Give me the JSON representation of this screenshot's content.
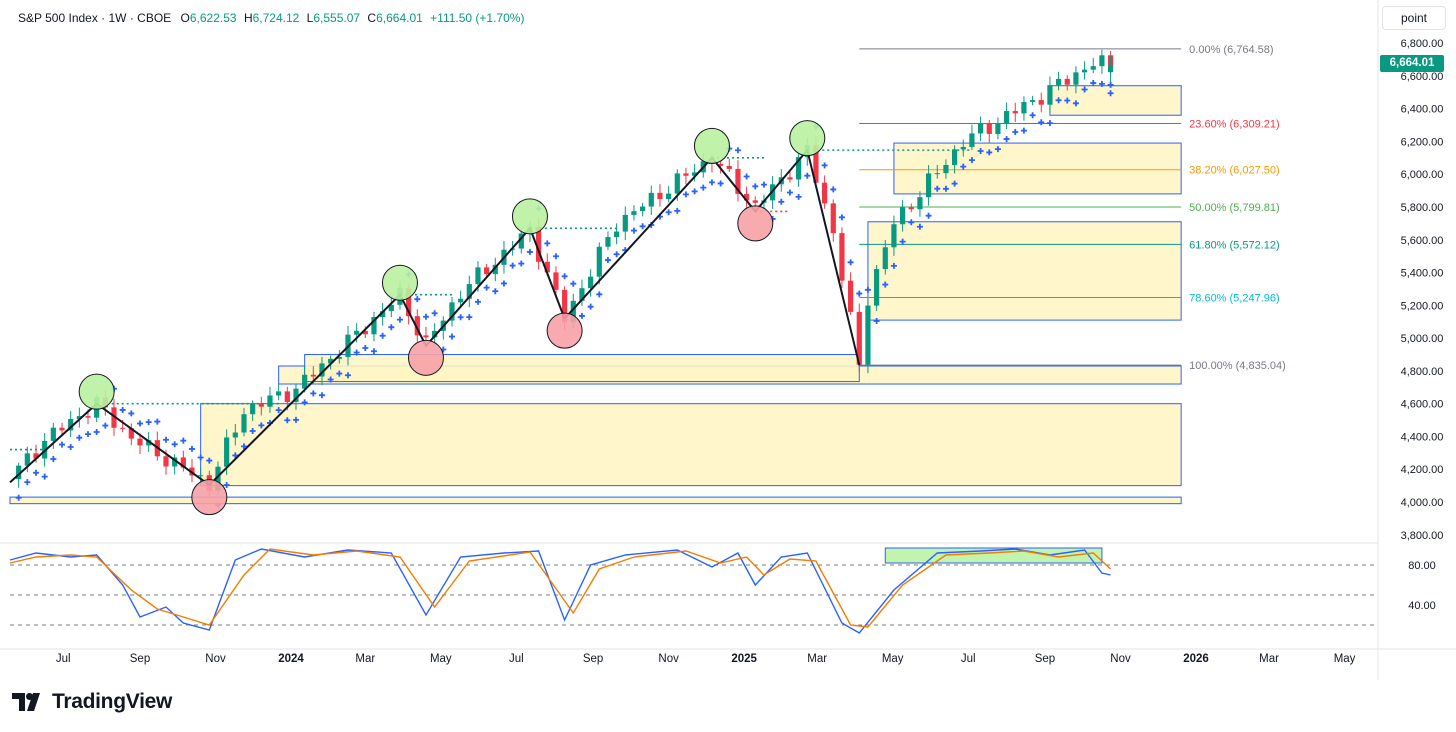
{
  "header": {
    "symbol": "S&P 500 Index · 1W · CBOE",
    "o_label": "O",
    "o_value": "6,622.53",
    "h_label": "H",
    "h_value": "6,724.12",
    "l_label": "L",
    "l_value": "6,555.07",
    "c_label": "C",
    "c_value": "6,664.01",
    "change": "+111.50 (+1.70%)"
  },
  "price_scale": {
    "unit_label": "point",
    "last_price": "6,664.01"
  },
  "branding": {
    "name": "TradingView"
  },
  "colors": {
    "up": "#089981",
    "down": "#f23645",
    "psar": "#2962ff",
    "swing_high": "#b9f2a0",
    "swing_low": "#f7a1a6",
    "zone_fill": "#fff6c2",
    "zone_border": "#2962ff",
    "stoch_k": "#2962ff",
    "stoch_d": "#f57c00",
    "stoch_box": "#b9f2a0"
  },
  "chart_data": [
    {
      "type": "candlestick",
      "title": "S&P 500 Index · 1W · CBOE",
      "ylabel": "point",
      "y_ticks": [
        "3,800.00",
        "4,000.00",
        "4,200.00",
        "4,400.00",
        "4,600.00",
        "4,800.00",
        "5,000.00",
        "5,200.00",
        "5,400.00",
        "5,600.00",
        "5,800.00",
        "6,000.00",
        "6,200.00",
        "6,400.00",
        "6,600.00",
        "6,800.00"
      ],
      "ylim": [
        3750,
        6880
      ],
      "x_range": [
        "2023-05-19",
        "2026-05-28"
      ],
      "x_ticks": [
        {
          "date": "2023-07-01",
          "label": "Jul"
        },
        {
          "date": "2023-09-01",
          "label": "Sep"
        },
        {
          "date": "2023-11-01",
          "label": "Nov"
        },
        {
          "date": "2024-01-01",
          "label": "2024"
        },
        {
          "date": "2024-03-01",
          "label": "Mar"
        },
        {
          "date": "2024-05-01",
          "label": "May"
        },
        {
          "date": "2024-07-01",
          "label": "Jul"
        },
        {
          "date": "2024-09-01",
          "label": "Sep"
        },
        {
          "date": "2024-11-01",
          "label": "Nov"
        },
        {
          "date": "2025-01-01",
          "label": "2025"
        },
        {
          "date": "2025-03-01",
          "label": "Mar"
        },
        {
          "date": "2025-05-01",
          "label": "May"
        },
        {
          "date": "2025-07-01",
          "label": "Jul"
        },
        {
          "date": "2025-09-01",
          "label": "Sep"
        },
        {
          "date": "2025-11-01",
          "label": "Nov"
        },
        {
          "date": "2026-01-01",
          "label": "2026"
        },
        {
          "date": "2026-03-01",
          "label": "Mar"
        },
        {
          "date": "2026-05-01",
          "label": "May"
        }
      ],
      "path_anchors": [
        [
          "2023-05-19",
          4140
        ],
        [
          "2023-06-16",
          4380
        ],
        [
          "2023-07-28",
          4600
        ],
        [
          "2023-08-25",
          4390
        ],
        [
          "2023-10-27",
          4110
        ],
        [
          "2023-11-24",
          4560
        ],
        [
          "2024-01-05",
          4690
        ],
        [
          "2024-03-29",
          5260
        ],
        [
          "2024-04-19",
          4960
        ],
        [
          "2024-05-17",
          5280
        ],
        [
          "2024-07-12",
          5660
        ],
        [
          "2024-08-09",
          5120
        ],
        [
          "2024-09-20",
          5700
        ],
        [
          "2024-12-06",
          6100
        ],
        [
          "2025-01-10",
          5800
        ],
        [
          "2025-02-21",
          6140
        ],
        [
          "2025-03-14",
          5650
        ],
        [
          "2025-04-04",
          4835
        ],
        [
          "2025-04-11",
          5250
        ],
        [
          "2025-05-02",
          5700
        ],
        [
          "2025-06-27",
          6200
        ],
        [
          "2025-08-29",
          6480
        ],
        [
          "2025-10-10",
          6680
        ],
        [
          "2025-10-24",
          6664
        ]
      ],
      "last_candle": {
        "date": "2025-10-24",
        "open": 6622.53,
        "high": 6724.12,
        "low": 6555.07,
        "close": 6664.01
      },
      "swing_highs": [
        {
          "date": "2023-07-28",
          "value": 4600
        },
        {
          "date": "2024-03-29",
          "value": 5265
        },
        {
          "date": "2024-07-12",
          "value": 5670
        },
        {
          "date": "2024-12-06",
          "value": 6100
        },
        {
          "date": "2025-02-21",
          "value": 6147
        }
      ],
      "swing_lows": [
        {
          "date": "2023-10-27",
          "value": 4103
        },
        {
          "date": "2024-04-19",
          "value": 4953
        },
        {
          "date": "2024-08-09",
          "value": 5119
        },
        {
          "date": "2025-01-10",
          "value": 5773
        }
      ],
      "zigzag": [
        [
          "2023-05-19",
          4120
        ],
        [
          "2023-07-28",
          4600
        ],
        [
          "2023-10-27",
          4103
        ],
        [
          "2024-03-29",
          5265
        ],
        [
          "2024-04-19",
          4953
        ],
        [
          "2024-07-12",
          5670
        ],
        [
          "2024-08-09",
          5119
        ],
        [
          "2024-12-06",
          6100
        ],
        [
          "2025-01-10",
          5773
        ],
        [
          "2025-02-21",
          6147
        ],
        [
          "2025-04-04",
          4835
        ]
      ],
      "dotted_levels": [
        {
          "from": "2023-05-19",
          "to": "2023-06-16",
          "value": 4320,
          "color": "#089981"
        },
        {
          "from": "2023-07-28",
          "to": "2023-12-22",
          "value": 4600,
          "color": "#089981"
        },
        {
          "from": "2024-03-29",
          "to": "2024-05-10",
          "value": 5265,
          "color": "#089981"
        },
        {
          "from": "2024-07-12",
          "to": "2024-09-20",
          "value": 5670,
          "color": "#089981"
        },
        {
          "from": "2024-12-06",
          "to": "2025-01-17",
          "value": 6100,
          "color": "#089981"
        },
        {
          "from": "2025-02-21",
          "to": "2025-07-04",
          "value": 6147,
          "color": "#089981"
        },
        {
          "from": "2025-01-10",
          "to": "2025-02-07",
          "value": 5773,
          "color": "#f23645"
        }
      ],
      "fib_anchor": {
        "from": "2025-04-04",
        "to": "2025-12-20"
      },
      "fib_levels": [
        {
          "label": "0.00% (6,764.58)",
          "value": 6764.58,
          "color": "#787b86"
        },
        {
          "label": "23.60% (6,309.21)",
          "value": 6309.21,
          "color": "#f23645"
        },
        {
          "label": "38.20% (6,027.50)",
          "value": 6027.5,
          "color": "#ff9800"
        },
        {
          "label": "50.00% (5,799.81)",
          "value": 5799.81,
          "color": "#4caf50"
        },
        {
          "label": "61.80% (5,572.12)",
          "value": 5572.12,
          "color": "#089981"
        },
        {
          "label": "78.60% (5,247.96)",
          "value": 5247.96,
          "color": "#00bcd4"
        },
        {
          "label": "100.00% (4,835.04)",
          "value": 4835.04,
          "color": "#787b86"
        }
      ],
      "zones": [
        {
          "from": "2023-05-19",
          "to": "2025-12-20",
          "y1": 3990,
          "y2": 4030
        },
        {
          "from": "2023-10-20",
          "to": "2025-12-20",
          "y1": 4100,
          "y2": 4600
        },
        {
          "from": "2023-12-22",
          "to": "2025-12-20",
          "y1": 4720,
          "y2": 4830
        },
        {
          "from": "2024-01-12",
          "to": "2025-04-04",
          "y1": 4735,
          "y2": 4900
        },
        {
          "from": "2025-04-11",
          "to": "2025-12-20",
          "y1": 5110,
          "y2": 5710
        },
        {
          "from": "2025-05-02",
          "to": "2025-12-20",
          "y1": 5880,
          "y2": 6190
        },
        {
          "from": "2025-09-05",
          "to": "2025-12-20",
          "y1": 6360,
          "y2": 6540
        }
      ]
    },
    {
      "type": "line",
      "title": "",
      "y_ticks": [
        "40.00",
        "80.00"
      ],
      "ylim": [
        0,
        100
      ],
      "reference_lines": [
        20,
        50,
        80
      ],
      "series": [
        {
          "color": "#2962ff",
          "values": [
            [
              "2023-05-19",
              85
            ],
            [
              "2023-06-09",
              92
            ],
            [
              "2023-07-07",
              88
            ],
            [
              "2023-07-28",
              90
            ],
            [
              "2023-08-18",
              60
            ],
            [
              "2023-09-01",
              28
            ],
            [
              "2023-09-22",
              38
            ],
            [
              "2023-10-06",
              22
            ],
            [
              "2023-10-27",
              15
            ],
            [
              "2023-11-17",
              85
            ],
            [
              "2023-12-08",
              96
            ],
            [
              "2024-01-12",
              88
            ],
            [
              "2024-02-16",
              95
            ],
            [
              "2024-03-22",
              92
            ],
            [
              "2024-04-19",
              30
            ],
            [
              "2024-05-17",
              88
            ],
            [
              "2024-06-21",
              92
            ],
            [
              "2024-07-19",
              94
            ],
            [
              "2024-08-09",
              25
            ],
            [
              "2024-08-30",
              80
            ],
            [
              "2024-09-27",
              90
            ],
            [
              "2024-11-08",
              95
            ],
            [
              "2024-12-06",
              78
            ],
            [
              "2024-12-27",
              92
            ],
            [
              "2025-01-10",
              60
            ],
            [
              "2025-01-31",
              88
            ],
            [
              "2025-02-21",
              92
            ],
            [
              "2025-03-21",
              22
            ],
            [
              "2025-04-04",
              12
            ],
            [
              "2025-05-02",
              55
            ],
            [
              "2025-06-06",
              92
            ],
            [
              "2025-07-11",
              94
            ],
            [
              "2025-08-08",
              96
            ],
            [
              "2025-09-05",
              90
            ],
            [
              "2025-10-03",
              95
            ],
            [
              "2025-10-17",
              72
            ],
            [
              "2025-10-24",
              70
            ]
          ]
        },
        {
          "color": "#f57c00",
          "values": [
            [
              "2023-05-19",
              82
            ],
            [
              "2023-06-09",
              88
            ],
            [
              "2023-07-07",
              90
            ],
            [
              "2023-07-28",
              88
            ],
            [
              "2023-08-25",
              55
            ],
            [
              "2023-09-15",
              36
            ],
            [
              "2023-10-06",
              28
            ],
            [
              "2023-10-27",
              20
            ],
            [
              "2023-11-24",
              70
            ],
            [
              "2023-12-15",
              96
            ],
            [
              "2024-01-19",
              90
            ],
            [
              "2024-02-23",
              94
            ],
            [
              "2024-03-29",
              88
            ],
            [
              "2024-04-26",
              38
            ],
            [
              "2024-05-24",
              84
            ],
            [
              "2024-07-12",
              93
            ],
            [
              "2024-08-16",
              32
            ],
            [
              "2024-09-06",
              76
            ],
            [
              "2024-10-04",
              88
            ],
            [
              "2024-11-15",
              94
            ],
            [
              "2024-12-13",
              82
            ],
            [
              "2025-01-03",
              88
            ],
            [
              "2025-01-17",
              70
            ],
            [
              "2025-02-07",
              86
            ],
            [
              "2025-02-28",
              84
            ],
            [
              "2025-03-28",
              20
            ],
            [
              "2025-04-11",
              18
            ],
            [
              "2025-05-09",
              60
            ],
            [
              "2025-06-13",
              90
            ],
            [
              "2025-07-18",
              92
            ],
            [
              "2025-08-15",
              94
            ],
            [
              "2025-09-12",
              88
            ],
            [
              "2025-10-10",
              92
            ],
            [
              "2025-10-24",
              76
            ]
          ]
        }
      ],
      "highlight_box": {
        "from": "2025-04-25",
        "to": "2025-10-17",
        "y1": 82,
        "y2": 97
      }
    }
  ]
}
